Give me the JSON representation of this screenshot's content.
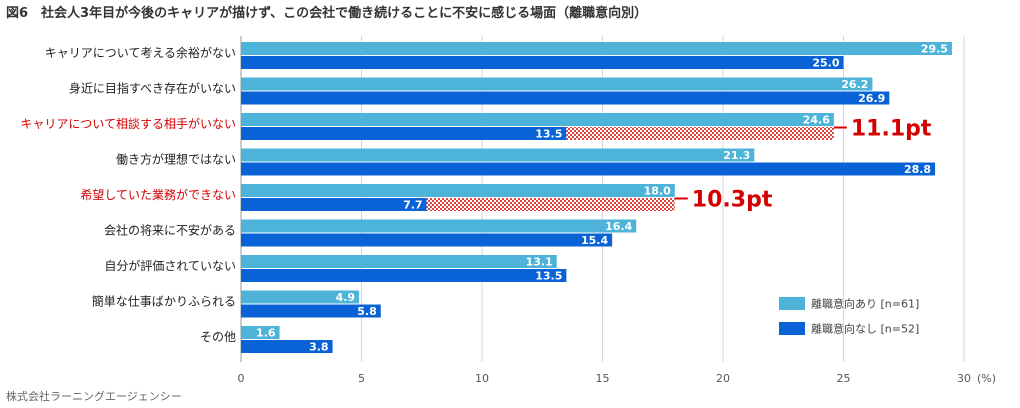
{
  "chart_data": {
    "type": "bar",
    "title": "図6　社会人3年目が今後のキャリアが描けず、この会社で働き続けることに不安に感じる場面（離職意向別）",
    "categories": [
      "キャリアについて考える余裕がない",
      "身近に目指すべき存在がいない",
      "キャリアについて相談する相手がいない",
      "働き方が理想ではない",
      "希望していた業務ができない",
      "会社の将来に不安がある",
      "自分が評価されていない",
      "簡単な仕事ばかりふられる",
      "その他"
    ],
    "highlighted": [
      2,
      4
    ],
    "series": [
      {
        "name": "離職意向あり [n=61]",
        "color": "#4eb3d9",
        "values": [
          29.5,
          26.2,
          24.6,
          21.3,
          18.0,
          16.4,
          13.1,
          4.9,
          1.6
        ]
      },
      {
        "name": "離職意向なし [n=52]",
        "color": "#0a63d6",
        "values": [
          25.0,
          26.9,
          13.5,
          28.8,
          7.7,
          15.4,
          13.5,
          5.8,
          3.8
        ]
      }
    ],
    "value_labels": [
      [
        "29.5",
        "26.2",
        "24.6",
        "21.3",
        "18.0",
        "16.4",
        "13.1",
        "4.9",
        "1.6"
      ],
      [
        "25.0",
        "26.9",
        "13.5",
        "28.8",
        "7.7",
        "15.4",
        "13.5",
        "5.8",
        "3.8"
      ]
    ],
    "differences": [
      {
        "category_index": 2,
        "label": "11.1pt"
      },
      {
        "category_index": 4,
        "label": "10.3pt"
      }
    ],
    "xlim": [
      0,
      30
    ],
    "xticks": [
      "0",
      "5",
      "10",
      "15",
      "20",
      "25",
      "30"
    ],
    "xunit": "(%)",
    "highlight_color": "#d40000",
    "source": "株式会社ラーニングエージェンシー"
  }
}
